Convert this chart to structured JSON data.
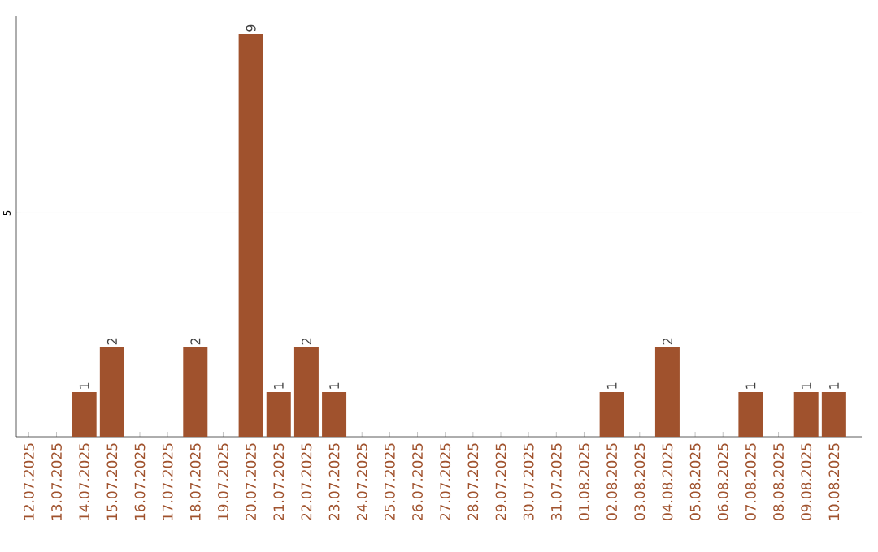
{
  "chart_data": {
    "type": "bar",
    "categories": [
      "12.07.2025",
      "13.07.2025",
      "14.07.2025",
      "15.07.2025",
      "16.07.2025",
      "17.07.2025",
      "18.07.2025",
      "19.07.2025",
      "20.07.2025",
      "21.07.2025",
      "22.07.2025",
      "23.07.2025",
      "24.07.2025",
      "25.07.2025",
      "26.07.2025",
      "27.07.2025",
      "28.07.2025",
      "29.07.2025",
      "30.07.2025",
      "31.07.2025",
      "01.08.2025",
      "02.08.2025",
      "03.08.2025",
      "04.08.2025",
      "05.08.2025",
      "06.08.2025",
      "07.08.2025",
      "08.08.2025",
      "09.08.2025",
      "10.08.2025"
    ],
    "values": [
      0,
      0,
      1,
      2,
      0,
      0,
      2,
      0,
      9,
      1,
      2,
      1,
      0,
      0,
      0,
      0,
      0,
      0,
      0,
      0,
      0,
      1,
      0,
      2,
      0,
      0,
      1,
      0,
      1,
      1
    ],
    "value_labels": [
      null,
      null,
      "1",
      "2",
      null,
      null,
      "2",
      null,
      "9",
      "1",
      "2",
      "1",
      null,
      null,
      null,
      null,
      null,
      null,
      null,
      null,
      null,
      "1",
      null,
      "2",
      null,
      null,
      "1",
      null,
      "1",
      "1"
    ],
    "color": "#a0522d",
    "ylim": [
      0,
      9.4
    ],
    "yticks": [
      5
    ],
    "grid": "y"
  }
}
